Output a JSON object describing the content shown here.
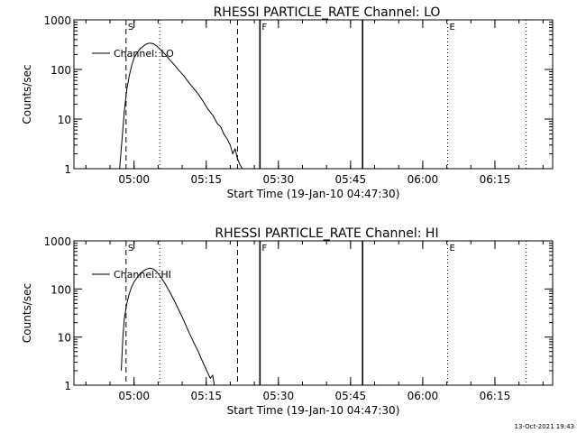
{
  "footer": {
    "timestamp": "13-Oct-2021 19:43"
  },
  "chart_data": [
    {
      "type": "line",
      "title": "RHESSI PARTICLE_RATE Channel: LO",
      "xlabel": "Start Time (19-Jan-10 04:47:30)",
      "ylabel": "Counts/sec",
      "yscale": "log",
      "ylim": [
        1,
        1000
      ],
      "xlim": [
        "04:47:30",
        "06:27:00"
      ],
      "x_ticks": [
        "05:00",
        "05:15",
        "05:30",
        "05:45",
        "06:00",
        "06:15"
      ],
      "y_ticks": [
        "1",
        "10",
        "100",
        "1000"
      ],
      "legend": {
        "placement": "top-left",
        "entries": [
          "Channel: LO"
        ]
      },
      "markers": [
        {
          "time": "04:58:20",
          "style": "dashed",
          "label": "S"
        },
        {
          "time": "05:05:20",
          "style": "dotted",
          "label": ""
        },
        {
          "time": "05:21:30",
          "style": "dashed",
          "label": ""
        },
        {
          "time": "05:26:10",
          "style": "solid",
          "label": "F"
        },
        {
          "time": "05:47:30",
          "style": "solid",
          "label": ""
        },
        {
          "time": "06:05:10",
          "style": "dotted",
          "label": "E"
        },
        {
          "time": "06:21:30",
          "style": "dotted",
          "label": ""
        }
      ],
      "series": [
        {
          "name": "Channel: LO",
          "x": [
            "04:57:00",
            "04:57:30",
            "04:58:00",
            "04:58:30",
            "04:59:00",
            "04:59:30",
            "05:00:00",
            "05:00:40",
            "05:01:20",
            "05:02:00",
            "05:02:40",
            "05:03:20",
            "05:04:00",
            "05:04:40",
            "05:05:20",
            "05:06:20",
            "05:07:20",
            "05:08:20",
            "05:09:20",
            "05:10:20",
            "05:11:20",
            "05:12:20",
            "05:13:20",
            "05:14:20",
            "05:15:20",
            "05:16:20",
            "05:17:20",
            "05:18:00",
            "05:18:40",
            "05:19:20",
            "05:20:00",
            "05:20:30",
            "05:21:00",
            "05:21:30",
            "05:22:00",
            "05:22:30"
          ],
          "values": [
            1,
            4,
            15,
            40,
            75,
            120,
            170,
            220,
            265,
            300,
            330,
            340,
            330,
            300,
            260,
            210,
            160,
            125,
            95,
            75,
            55,
            42,
            32,
            23,
            16,
            12,
            8,
            7,
            5,
            4,
            3,
            2,
            2.5,
            1.6,
            1.2,
            1
          ]
        }
      ]
    },
    {
      "type": "line",
      "title": "RHESSI PARTICLE_RATE Channel: HI",
      "xlabel": "Start Time (19-Jan-10 04:47:30)",
      "ylabel": "Counts/sec",
      "yscale": "log",
      "ylim": [
        1,
        1000
      ],
      "xlim": [
        "04:47:30",
        "06:27:00"
      ],
      "x_ticks": [
        "05:00",
        "05:15",
        "05:30",
        "05:45",
        "06:00",
        "06:15"
      ],
      "y_ticks": [
        "1",
        "10",
        "100",
        "1000"
      ],
      "legend": {
        "placement": "top-left",
        "entries": [
          "Channel: HI"
        ]
      },
      "markers": [
        {
          "time": "04:58:20",
          "style": "dashed",
          "label": "S"
        },
        {
          "time": "05:05:20",
          "style": "dotted",
          "label": ""
        },
        {
          "time": "05:21:30",
          "style": "dashed",
          "label": ""
        },
        {
          "time": "05:26:10",
          "style": "solid",
          "label": "F"
        },
        {
          "time": "05:47:30",
          "style": "solid",
          "label": ""
        },
        {
          "time": "06:05:10",
          "style": "dotted",
          "label": "E"
        },
        {
          "time": "06:21:30",
          "style": "dotted",
          "label": ""
        }
      ],
      "series": [
        {
          "name": "Channel: HI",
          "x": [
            "04:57:20",
            "04:57:40",
            "04:58:00",
            "04:58:30",
            "04:59:00",
            "04:59:30",
            "05:00:00",
            "05:00:40",
            "05:01:20",
            "05:02:00",
            "05:02:40",
            "05:03:20",
            "05:04:00",
            "05:04:40",
            "05:05:20",
            "05:06:20",
            "05:07:20",
            "05:08:20",
            "05:09:20",
            "05:10:20",
            "05:11:20",
            "05:12:20",
            "05:13:20",
            "05:14:00",
            "05:14:40",
            "05:15:20",
            "05:15:50",
            "05:16:20",
            "05:16:40"
          ],
          "values": [
            2,
            10,
            25,
            50,
            80,
            110,
            140,
            175,
            210,
            240,
            260,
            270,
            260,
            230,
            190,
            135,
            90,
            58,
            36,
            22,
            13,
            8,
            5,
            3.5,
            2.5,
            1.8,
            1.4,
            1.6,
            1
          ]
        }
      ]
    }
  ]
}
